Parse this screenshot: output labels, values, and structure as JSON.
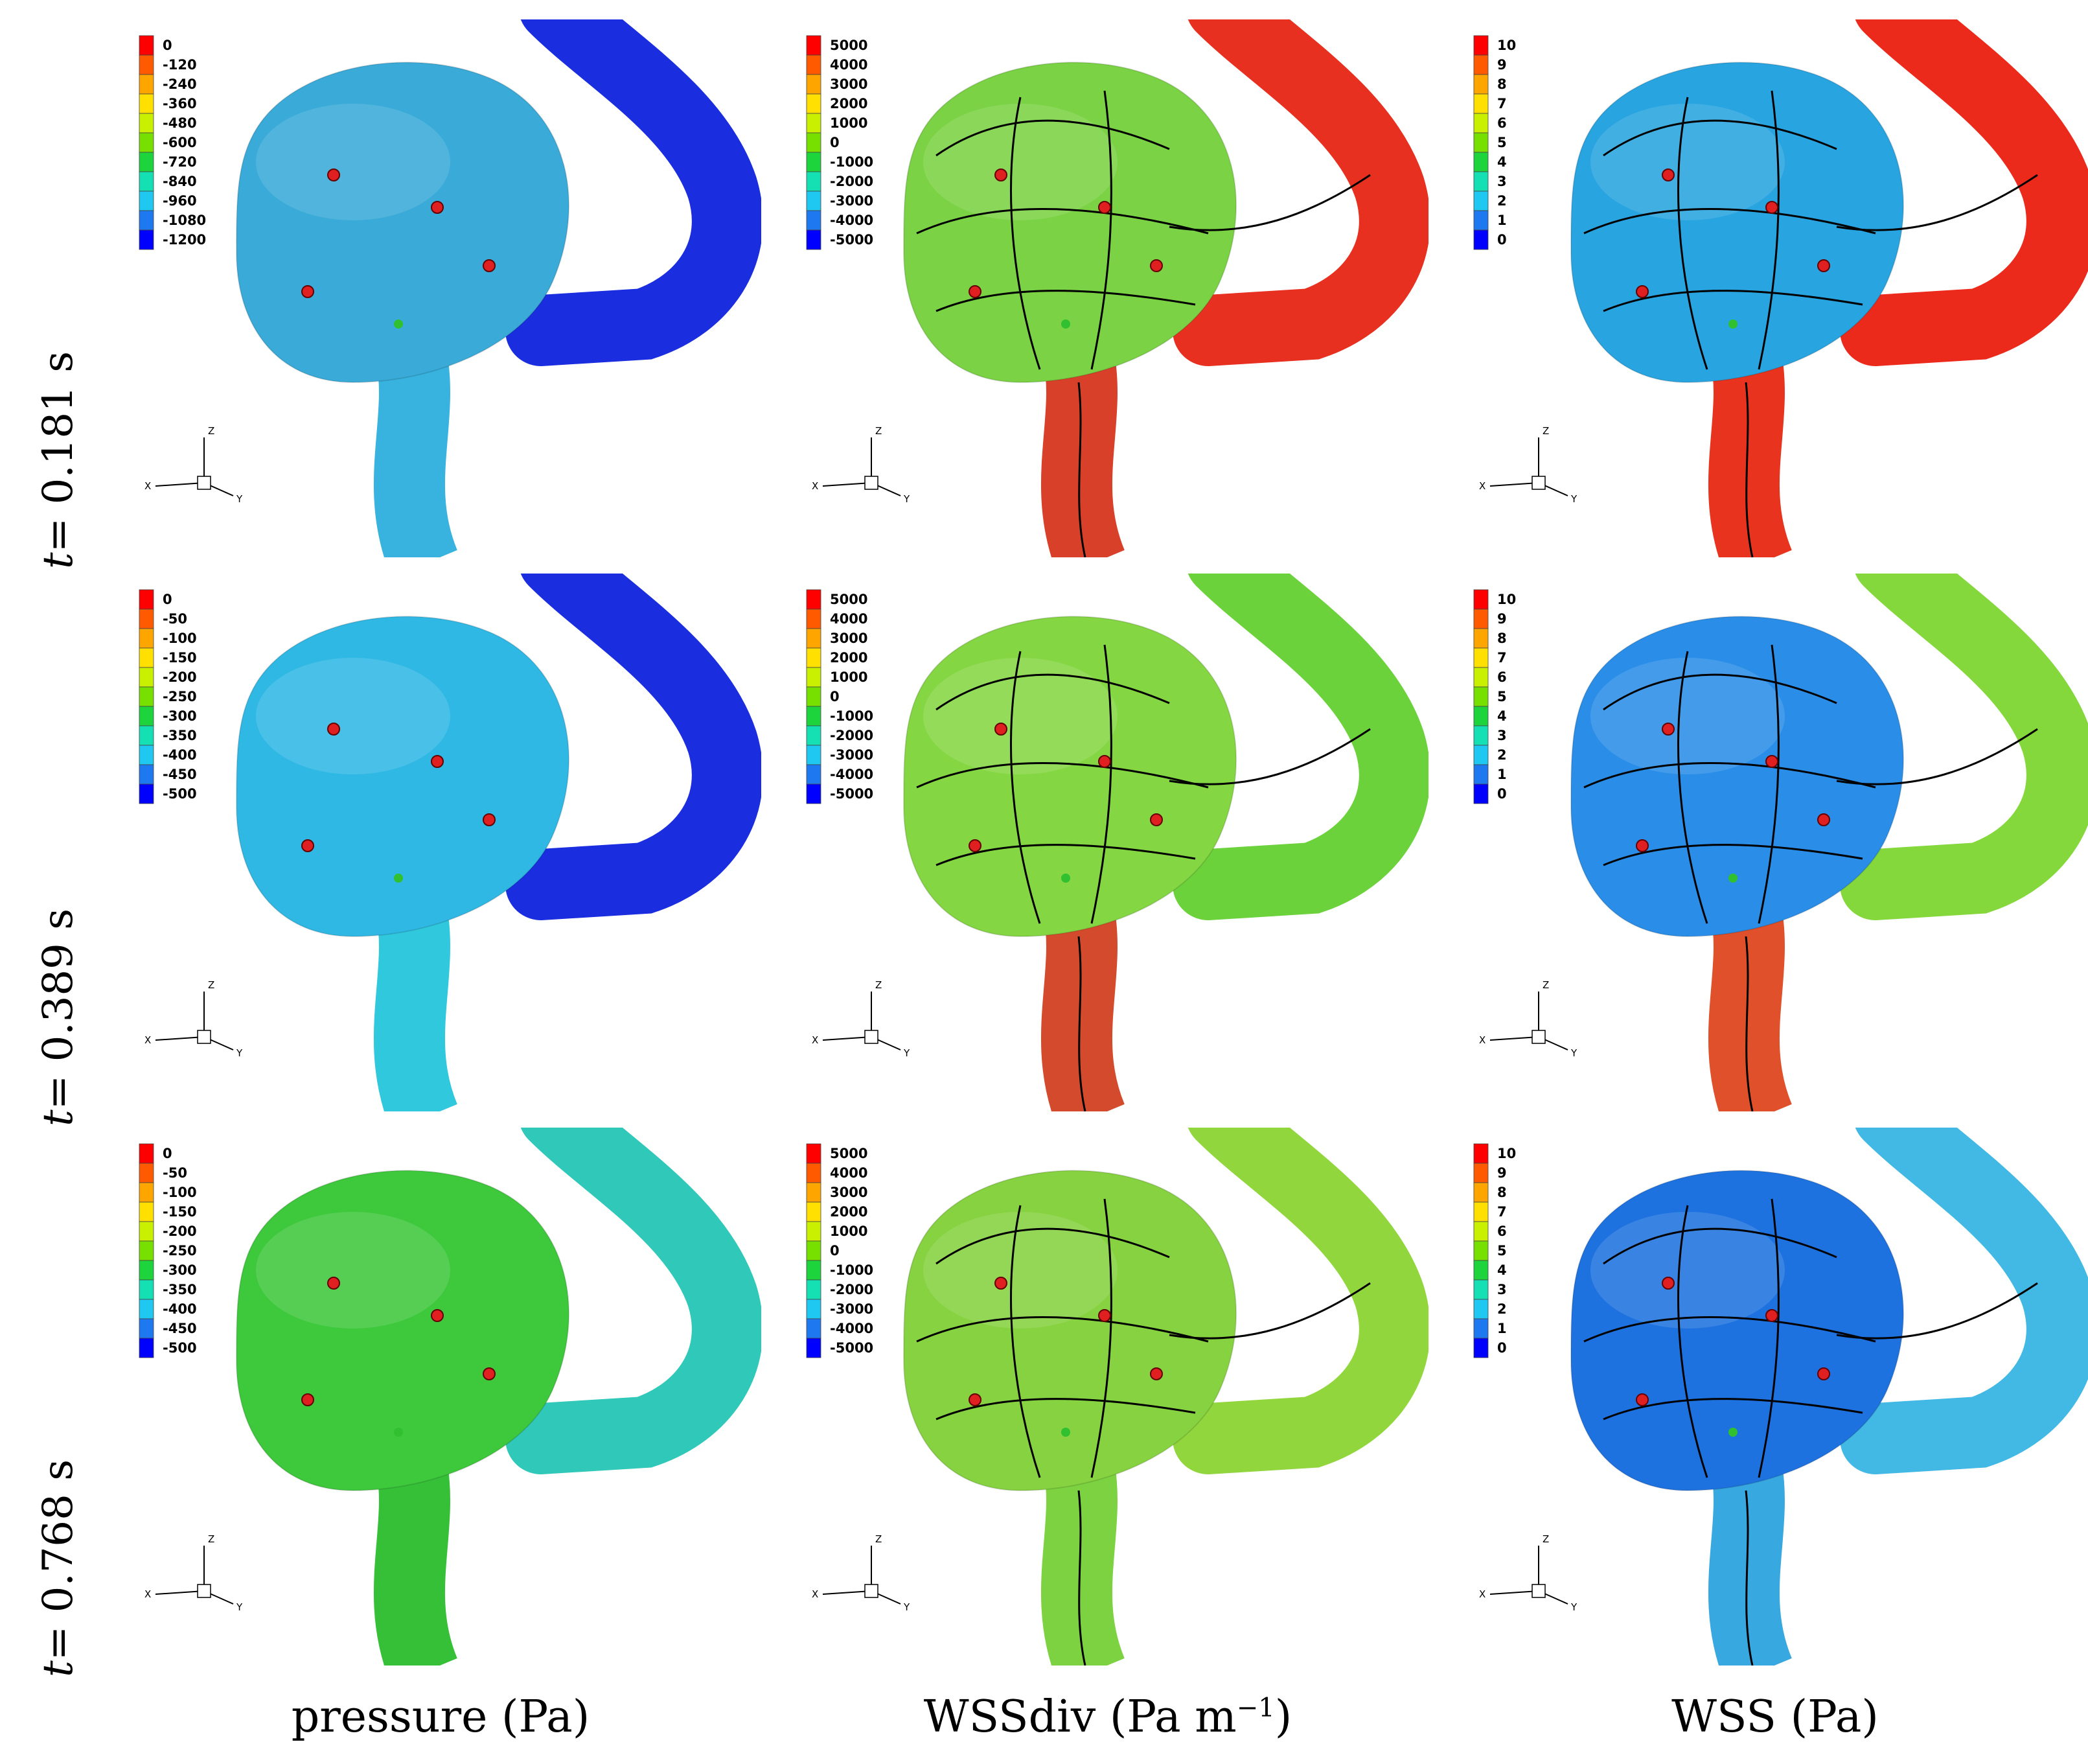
{
  "row_labels": [
    {
      "t": "t",
      "rest": " = 0.181 s"
    },
    {
      "t": "t",
      "rest": " = 0.389 s"
    },
    {
      "t": "t",
      "rest": " = 0.768 s"
    }
  ],
  "column_labels": {
    "pressure": "pressure (Pa)",
    "wssdiv_main": "WSSdiv (Pa m",
    "wssdiv_exp": "−1",
    "wssdiv_close": ")",
    "wss": "WSS (Pa)"
  },
  "colorbars": {
    "pressure_row1": [
      "0",
      "-120",
      "-240",
      "-360",
      "-480",
      "-600",
      "-720",
      "-840",
      "-960",
      "-1080",
      "-1200"
    ],
    "pressure_row23": [
      "0",
      "-50",
      "-100",
      "-150",
      "-200",
      "-250",
      "-300",
      "-350",
      "-400",
      "-450",
      "-500"
    ],
    "wssdiv": [
      "5000",
      "4000",
      "3000",
      "2000",
      "1000",
      "0",
      "-1000",
      "-2000",
      "-3000",
      "-4000",
      "-5000"
    ],
    "wss": [
      "10",
      "9",
      "8",
      "7",
      "6",
      "5",
      "4",
      "3",
      "2",
      "1",
      "0"
    ]
  },
  "axis_triad": {
    "z": "Z",
    "x": "X",
    "y": "Y"
  },
  "palette": [
    "#ff0000",
    "#ff5a00",
    "#ffa500",
    "#ffe000",
    "#c8f000",
    "#78e000",
    "#1ed43c",
    "#14e0b4",
    "#1ec8f0",
    "#1e78f0",
    "#0000ff"
  ],
  "panels": [
    {
      "row": 0,
      "col": 0,
      "type": "pressure",
      "aneurysm": "#3aaad8",
      "vessel": "#1a2ee0",
      "stem": "#38b2de"
    },
    {
      "row": 0,
      "col": 1,
      "type": "wssdiv",
      "aneurysm": "#7ad244",
      "vessel": "#e83020",
      "stem": "#d8402a"
    },
    {
      "row": 0,
      "col": 2,
      "type": "wss",
      "aneurysm": "#28a4e0",
      "vessel": "#ec2a1c",
      "stem": "#e8341e"
    },
    {
      "row": 1,
      "col": 0,
      "type": "pressure",
      "aneurysm": "#30b8e4",
      "vessel": "#1a2ee0",
      "stem": "#30c8dc"
    },
    {
      "row": 1,
      "col": 1,
      "type": "wssdiv",
      "aneurysm": "#84d642",
      "vessel": "#6cd23c",
      "stem": "#d44a2c"
    },
    {
      "row": 1,
      "col": 2,
      "type": "wss",
      "aneurysm": "#2a8ee8",
      "vessel": "#84d83c",
      "stem": "#e0502a"
    },
    {
      "row": 2,
      "col": 0,
      "type": "pressure",
      "aneurysm": "#3ec83c",
      "vessel": "#30c8b8",
      "stem": "#36c038"
    },
    {
      "row": 2,
      "col": 1,
      "type": "wssdiv",
      "aneurysm": "#86d240",
      "vessel": "#92d63e",
      "stem": "#7cd240"
    },
    {
      "row": 2,
      "col": 2,
      "type": "wss",
      "aneurysm": "#1e72e0",
      "vessel": "#42b8e4",
      "stem": "#38a8e0"
    }
  ]
}
